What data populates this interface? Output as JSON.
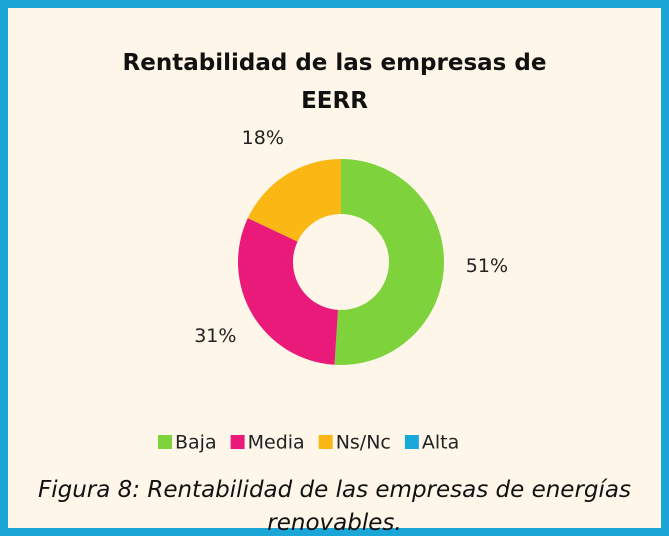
{
  "chart_data": {
    "type": "donut",
    "title": "Rentabilidad de las empresas de EERR",
    "categories": [
      "Baja",
      "Media",
      "Ns/Nc",
      "Alta"
    ],
    "values": [
      51,
      31,
      18,
      0
    ],
    "value_labels": [
      "51%",
      "31%",
      "18%",
      null
    ],
    "colors": [
      "#7ed33c",
      "#ea1a7b",
      "#fbb814",
      "#18a9da"
    ],
    "legend": "bottom"
  },
  "caption": "Figura 8: Rentabilidad de las empresas de energías renovables."
}
